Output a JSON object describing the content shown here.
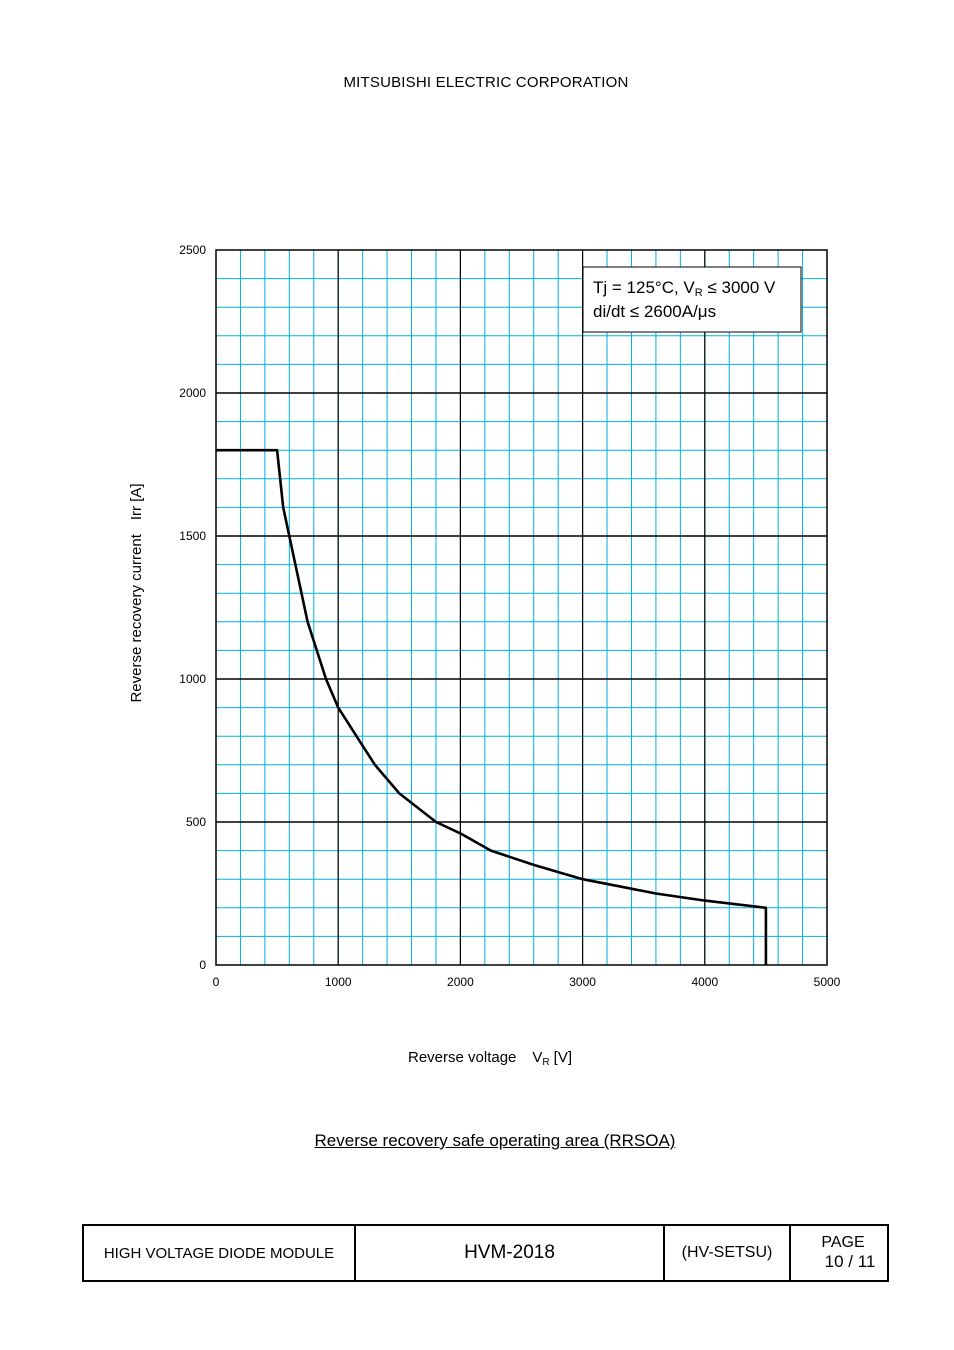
{
  "header": {
    "company": "MITSUBISHI ELECTRIC CORPORATION"
  },
  "chart_data": {
    "type": "line",
    "title": "Reverse recovery safe operating area (RRSOA)",
    "xlabel": "Reverse voltage",
    "xlabel_symbol": "V",
    "xlabel_subscript": "R",
    "xlabel_unit": "[V]",
    "ylabel": "Reverse recovery current",
    "ylabel_symbol": "Irr [A]",
    "xlim": [
      0,
      5000
    ],
    "ylim": [
      0,
      2500
    ],
    "xticks": [
      0,
      1000,
      2000,
      3000,
      4000,
      5000
    ],
    "yticks": [
      0,
      500,
      1000,
      1500,
      2000,
      2500
    ],
    "minor_grid_step_x": 200,
    "minor_grid_step_y": 100,
    "grid": true,
    "grid_color": "#00b0e0",
    "major_grid_color": "#000000",
    "line_color": "#000000",
    "legend_box": {
      "line1_prefix": "Tj = 125°C, V",
      "line1_sub": "R",
      "line1_suffix": " ≤ 3000 V",
      "line2": "di/dt ≤ 2600A/μs",
      "placement": "top-right"
    },
    "series": [
      {
        "x": [
          0,
          500,
          550,
          600,
          650,
          750,
          900,
          1000,
          1150,
          1300,
          1500,
          1800,
          2000,
          2250,
          2600,
          3000,
          3600,
          4000,
          4500,
          4500
        ],
        "y": [
          1800,
          1800,
          1600,
          1500,
          1400,
          1200,
          1000,
          900,
          800,
          700,
          600,
          500,
          460,
          400,
          350,
          300,
          250,
          225,
          200,
          0
        ]
      }
    ]
  },
  "footer": {
    "product": "HIGH VOLTAGE DIODE MODULE",
    "model": "HVM-2018",
    "code": "(HV-SETSU)",
    "page_label": "PAGE",
    "page_number": "10 / 11"
  }
}
